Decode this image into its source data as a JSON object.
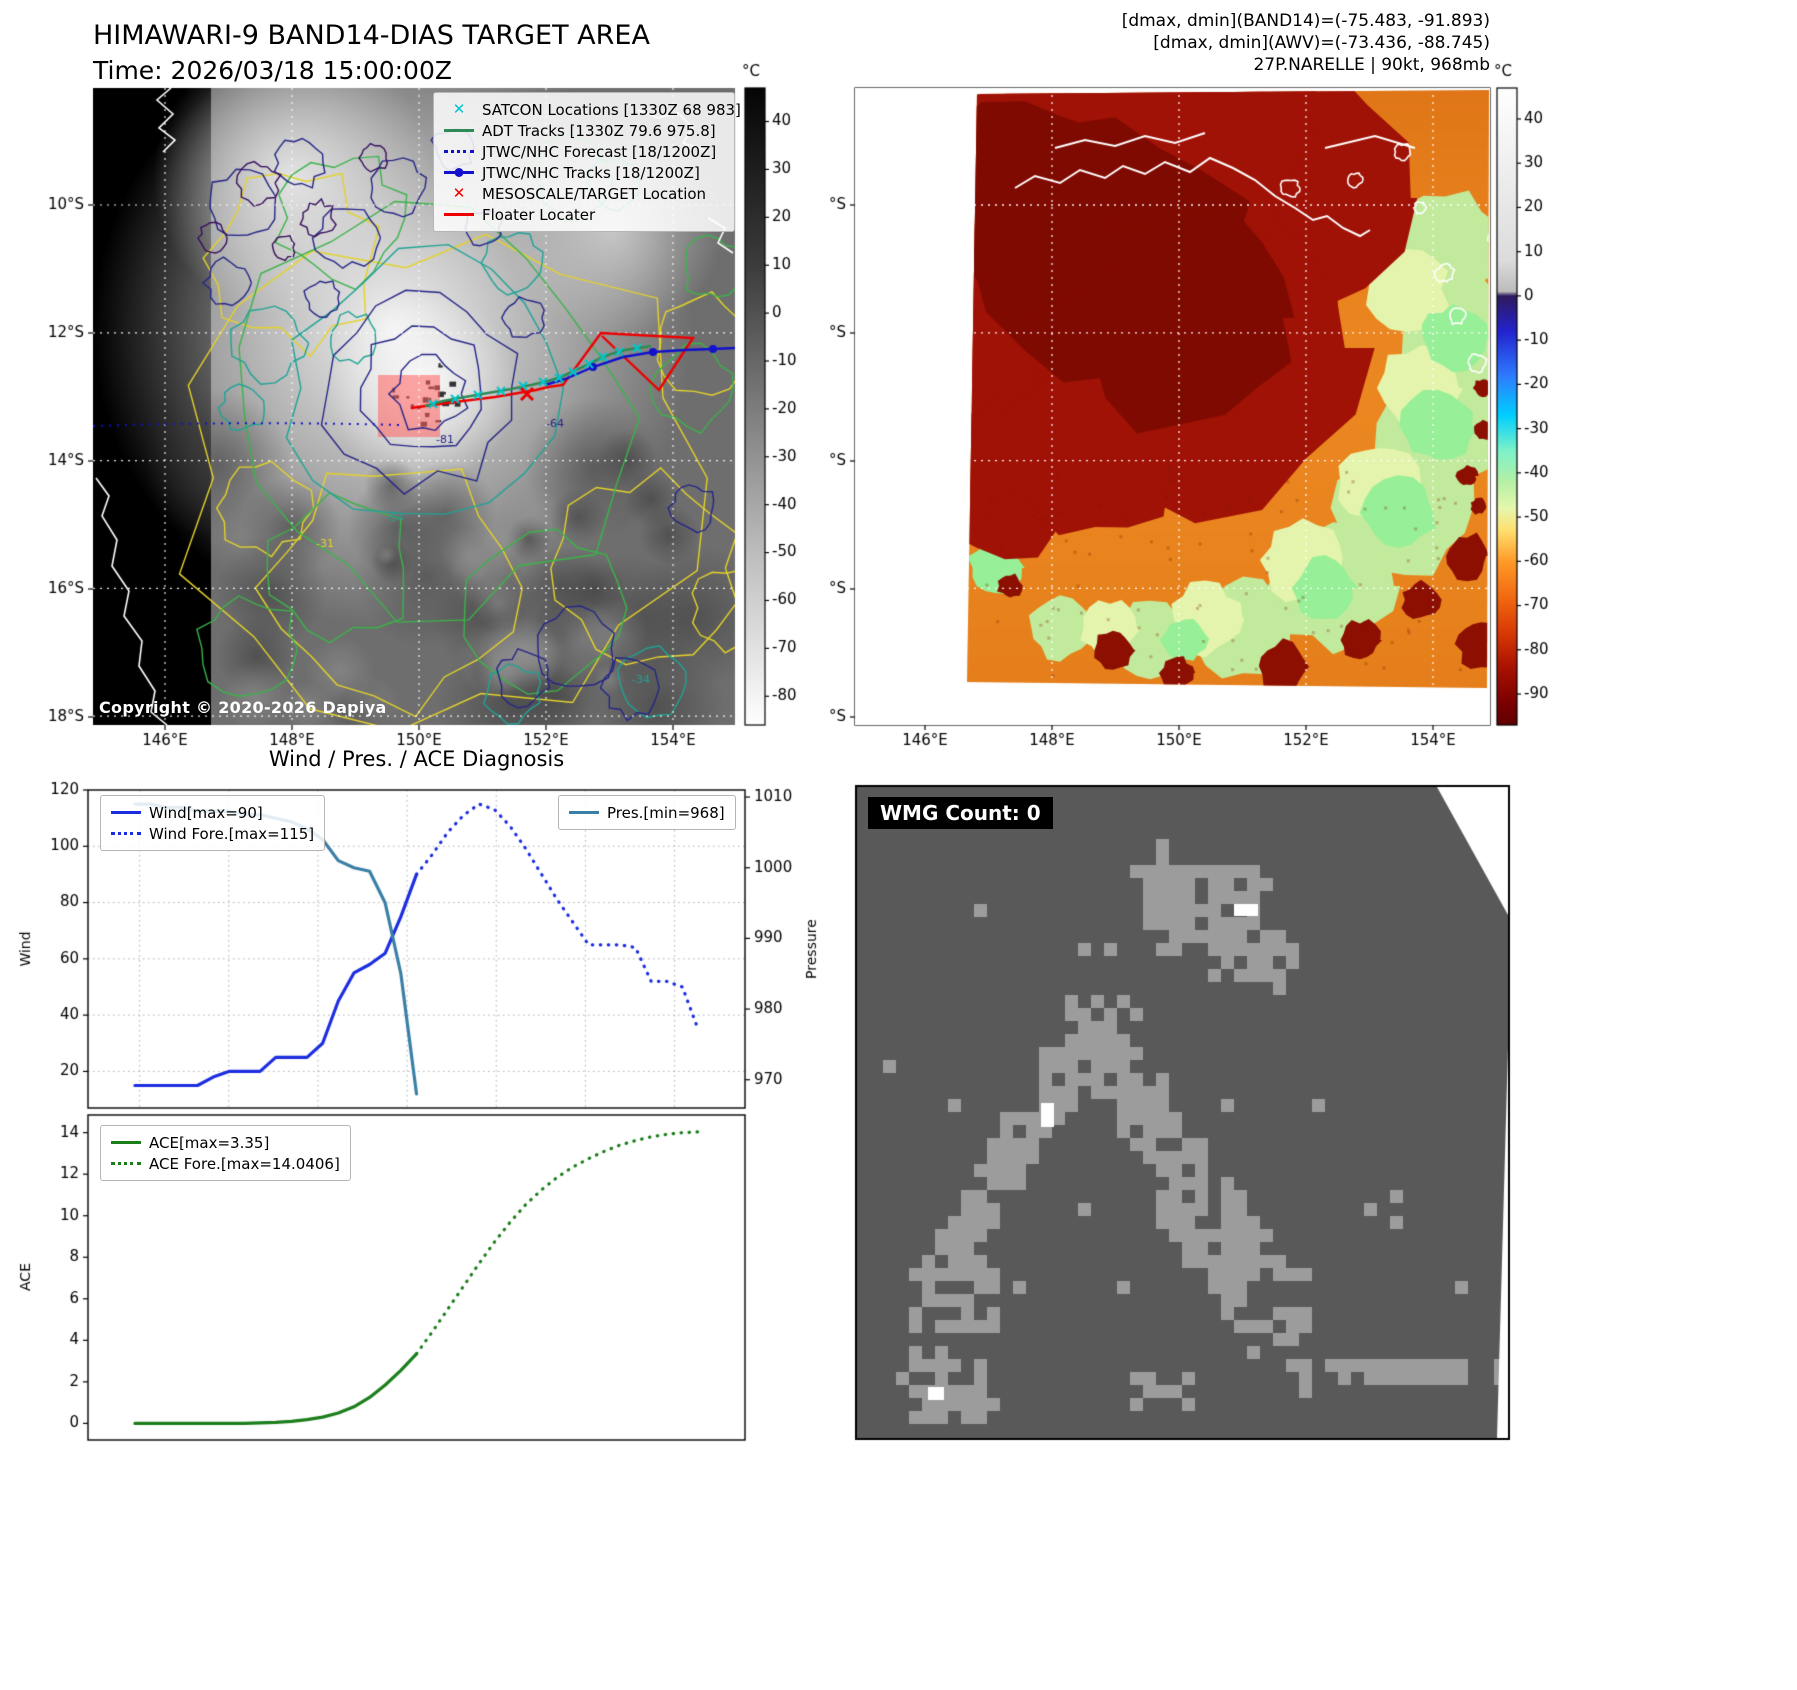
{
  "band14": {
    "title": "HIMAWARI-9 BAND14-DIAS TARGET AREA",
    "time_line": "Time: 2026/03/18 15:00:00Z",
    "copyright": "Copyright © 2020-2026 Dapiya",
    "legend": [
      {
        "label": "SATCON Locations [1330Z 68 983]",
        "marker": "x",
        "color": "#00c5cd"
      },
      {
        "label": "ADT Tracks [1330Z 79.6 975.8]",
        "marker": "line",
        "color": "#2e8b57"
      },
      {
        "label": "JTWC/NHC Forecast [18/1200Z]",
        "marker": "dotted",
        "color": "#1212cc"
      },
      {
        "label": "JTWC/NHC Tracks [18/1200Z]",
        "marker": "line-dot",
        "color": "#1212cc"
      },
      {
        "label": "MESOSCALE/TARGET Location",
        "marker": "x",
        "color": "#ee0000"
      },
      {
        "label": "Floater Locater",
        "marker": "line",
        "color": "#ee0000"
      }
    ],
    "xticks": [
      "146°E",
      "148°E",
      "150°E",
      "152°E",
      "154°E"
    ],
    "yticks": [
      "10°S",
      "12°S",
      "14°S",
      "16°S",
      "18°S"
    ],
    "colorbar_unit": "°C",
    "colorbar_range": [
      47,
      -86
    ],
    "colorbar_ticks": [
      "40",
      "30",
      "20",
      "10",
      "0",
      "-10",
      "-20",
      "-30",
      "-40",
      "-50",
      "-60",
      "-70",
      "-80"
    ],
    "colorbar_stops": [
      [
        47,
        "#050505"
      ],
      [
        10,
        "#3c3c3c"
      ],
      [
        -20,
        "#7d7d7d"
      ],
      [
        -50,
        "#bdbdbd"
      ],
      [
        -86,
        "#ffffff"
      ]
    ],
    "contour_labels": [
      "-81",
      "-64",
      "-54",
      "-31",
      "-34"
    ]
  },
  "awv": {
    "header_lines": [
      "[dmax, dmin](BAND14)=(-75.483, -91.893)",
      "[dmax, dmin](AWV)=(-73.436, -88.745)",
      "27P.NARELLE | 90kt, 968mb"
    ],
    "xticks": [
      "146°E",
      "148°E",
      "150°E",
      "152°E",
      "154°E"
    ],
    "yticks": [
      "10°S",
      "12°S",
      "14°S",
      "16°S",
      "18°S"
    ],
    "colorbar_unit": "°C",
    "colorbar_range": [
      47,
      -97
    ],
    "colorbar_ticks": [
      "40",
      "30",
      "20",
      "10",
      "0",
      "-10",
      "-20",
      "-30",
      "-40",
      "-50",
      "-60",
      "-70",
      "-80",
      "-90"
    ],
    "colorbar_stops": [
      [
        47,
        "#ffffff"
      ],
      [
        8,
        "#dcdcdc"
      ],
      [
        1,
        "#bcbcbc"
      ],
      [
        0,
        "#2e1a5c"
      ],
      [
        -8,
        "#2323cf"
      ],
      [
        -18,
        "#2e7bff"
      ],
      [
        -27,
        "#00cfff"
      ],
      [
        -35,
        "#7df2c8"
      ],
      [
        -42,
        "#b5f0a5"
      ],
      [
        -48,
        "#e6f7ae"
      ],
      [
        -53,
        "#ffe070"
      ],
      [
        -60,
        "#ff9b28"
      ],
      [
        -68,
        "#f26a12"
      ],
      [
        -76,
        "#d93a05"
      ],
      [
        -84,
        "#a81200"
      ],
      [
        -92,
        "#7c0000"
      ],
      [
        -97,
        "#600000"
      ]
    ]
  },
  "diagnosis": {
    "title": "Wind / Pres. / ACE Diagnosis"
  },
  "wmg": {
    "label": "WMG Count: 0"
  },
  "chart_data": [
    {
      "type": "line",
      "title": "Wind / Pres. / ACE Diagnosis (wind & pressure panel)",
      "x_axis": {
        "range": [
          0,
          42
        ],
        "ticks_visible": false,
        "gridlines": [
          3.3,
          9,
          14.7,
          20.4,
          26.1,
          31.8,
          37.5
        ]
      },
      "left_axis": {
        "label": "Wind",
        "range": [
          7,
          120
        ],
        "ticks": [
          20,
          40,
          60,
          80,
          100,
          120
        ]
      },
      "right_axis": {
        "label": "Pressure",
        "range": [
          966,
          1011
        ],
        "ticks": [
          970,
          980,
          990,
          1000,
          1010
        ]
      },
      "grid": true,
      "legend_position": "upper left / upper right",
      "series": [
        {
          "name": "Wind[max=90]",
          "axis": "left",
          "style": "solid",
          "color": "#1c2de0",
          "x": [
            3,
            4,
            5,
            6,
            7,
            8,
            9,
            10,
            11,
            12,
            13,
            14,
            15,
            16,
            17,
            18,
            19,
            20,
            21
          ],
          "values": [
            15,
            15,
            15,
            15,
            15,
            18,
            20,
            20,
            20,
            25,
            25,
            25,
            30,
            45,
            55,
            58,
            62,
            75,
            90
          ]
        },
        {
          "name": "Wind Fore.[max=115]",
          "axis": "left",
          "style": "dotted",
          "color": "#1c2de0",
          "x": [
            21,
            22,
            23,
            24,
            25,
            26,
            27,
            28,
            29,
            30,
            31,
            32,
            33,
            34,
            35,
            36,
            37,
            38,
            39
          ],
          "values": [
            90,
            97,
            105,
            111,
            115,
            113,
            107,
            99,
            90,
            81,
            73,
            65,
            65,
            65,
            64,
            52,
            52,
            50,
            35
          ]
        },
        {
          "name": "Pres.[min=968]",
          "axis": "right",
          "style": "solid",
          "color": "#3a7fa6",
          "x": [
            3,
            4,
            5,
            6,
            7,
            8,
            9,
            10,
            11,
            12,
            13,
            14,
            15,
            16,
            17,
            18,
            19,
            20,
            21
          ],
          "values": [
            1009,
            1009,
            1008.5,
            1008.5,
            1008,
            1008,
            1008,
            1007.5,
            1007.5,
            1007,
            1006.5,
            1005.5,
            1004,
            1001,
            1000,
            999.5,
            995,
            985,
            968
          ]
        }
      ]
    },
    {
      "type": "line",
      "title": "ACE panel",
      "x_axis": {
        "range": [
          0,
          42
        ],
        "ticks_visible": false
      },
      "left_axis": {
        "label": "ACE",
        "range": [
          -0.8,
          14.85
        ],
        "ticks": [
          0,
          2,
          4,
          6,
          8,
          10,
          12,
          14
        ]
      },
      "grid": false,
      "legend_position": "upper left",
      "series": [
        {
          "name": "ACE[max=3.35]",
          "axis": "left",
          "style": "solid",
          "color": "#1b7e1b",
          "x": [
            3,
            4,
            5,
            6,
            7,
            8,
            9,
            10,
            11,
            12,
            13,
            14,
            15,
            16,
            17,
            18,
            19,
            20,
            21
          ],
          "values": [
            0,
            0,
            0,
            0,
            0,
            0,
            0,
            0,
            0.02,
            0.05,
            0.1,
            0.18,
            0.3,
            0.5,
            0.8,
            1.25,
            1.85,
            2.55,
            3.35
          ]
        },
        {
          "name": "ACE Fore.[max=14.0406]",
          "axis": "left",
          "style": "dotted",
          "color": "#1b7e1b",
          "x": [
            21,
            22,
            23,
            24,
            25,
            26,
            27,
            28,
            29,
            30,
            31,
            32,
            33,
            34,
            35,
            36,
            37,
            38,
            39
          ],
          "values": [
            3.35,
            4.4,
            5.5,
            6.6,
            7.7,
            8.75,
            9.7,
            10.55,
            11.25,
            11.85,
            12.35,
            12.75,
            13.1,
            13.4,
            13.62,
            13.8,
            13.92,
            14.0,
            14.04
          ]
        }
      ]
    }
  ]
}
